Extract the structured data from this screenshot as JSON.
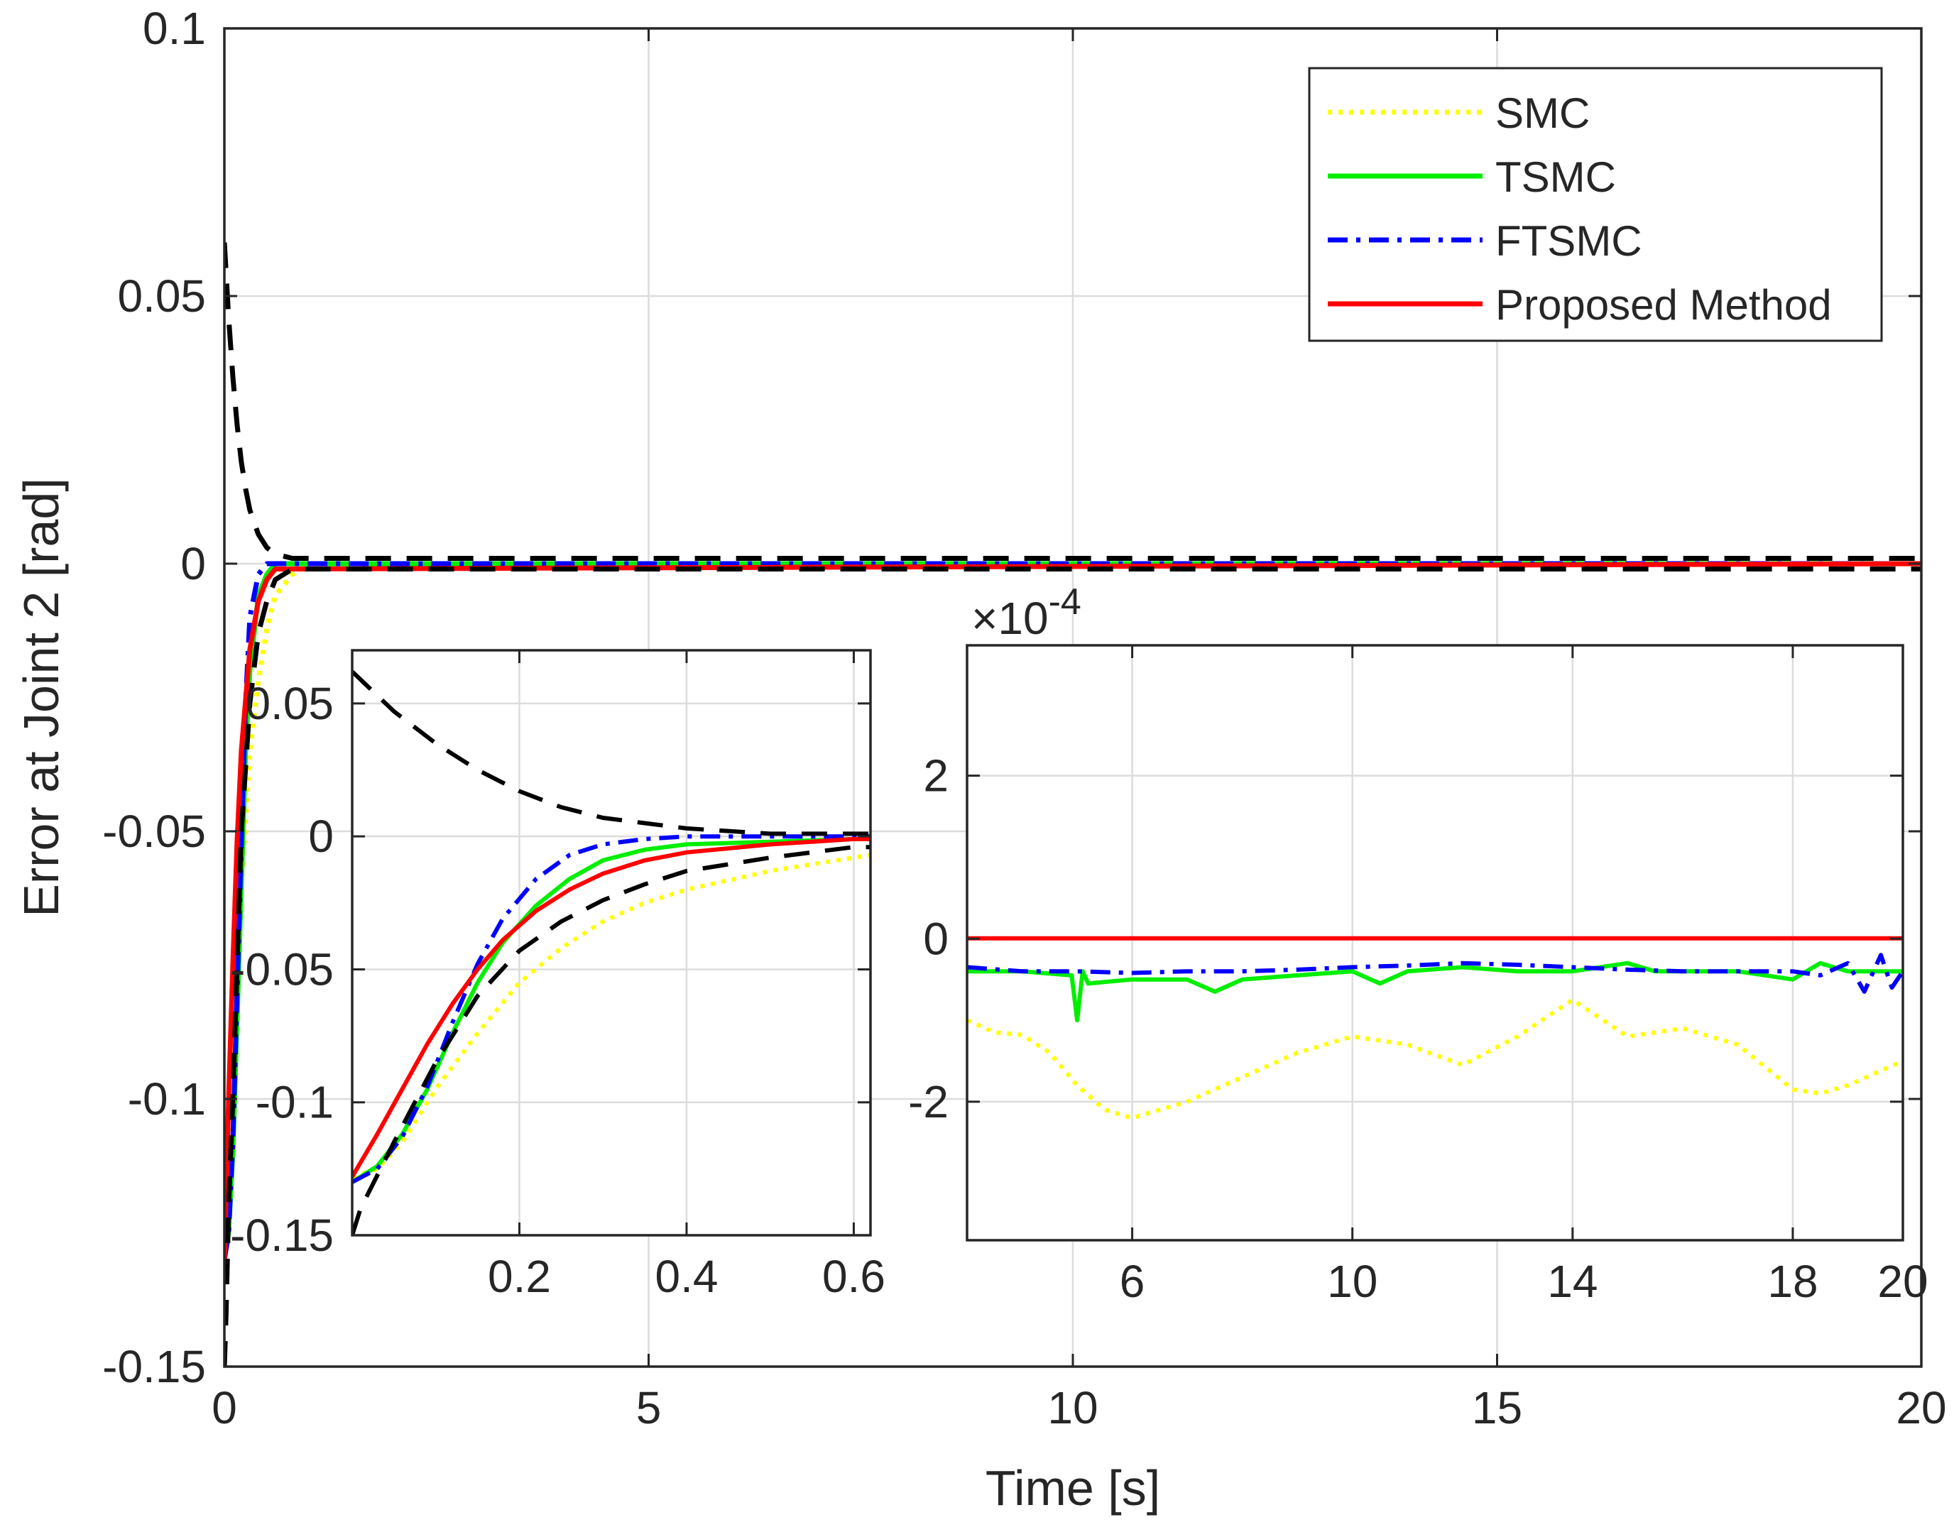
{
  "chart_data": [
    {
      "id": "main",
      "type": "line",
      "xlabel": "Time [s]",
      "ylabel": "Error at Joint 2 [rad]",
      "xlim": [
        0,
        20
      ],
      "ylim": [
        -0.15,
        0.1
      ],
      "grid": true,
      "legend_position": "top-right",
      "x_ticks": [
        0,
        5,
        10,
        15,
        20
      ],
      "x_tick_labels": [
        "0",
        "5",
        "10",
        "15",
        "20"
      ],
      "y_ticks": [
        -0.15,
        -0.1,
        -0.05,
        0,
        0.05,
        0.1
      ],
      "y_tick_labels": [
        "-0.15",
        "-0.1",
        "-0.05",
        "0",
        "0.05",
        "0.1"
      ],
      "legend": [
        "SMC",
        "TSMC",
        "FTSMC",
        "Proposed Method"
      ],
      "series": [
        {
          "name": "SMC",
          "color": "#ffff00",
          "style": "dotted",
          "x": [
            0,
            0.05,
            0.1,
            0.15,
            0.2,
            0.3,
            0.4,
            0.5,
            0.6,
            0.8,
            1.0,
            20
          ],
          "y": [
            -0.13,
            -0.12,
            -0.1,
            -0.08,
            -0.06,
            -0.035,
            -0.022,
            -0.012,
            -0.006,
            -0.002,
            0,
            0
          ]
        },
        {
          "name": "TSMC",
          "color": "#00ee00",
          "style": "solid",
          "x": [
            0,
            0.05,
            0.1,
            0.15,
            0.2,
            0.25,
            0.3,
            0.4,
            0.5,
            0.6,
            20
          ],
          "y": [
            -0.13,
            -0.125,
            -0.11,
            -0.085,
            -0.06,
            -0.035,
            -0.02,
            -0.006,
            -0.002,
            0,
            0
          ]
        },
        {
          "name": "FTSMC",
          "color": "#0000ff",
          "style": "dashdot",
          "x": [
            0,
            0.05,
            0.1,
            0.15,
            0.2,
            0.25,
            0.3,
            0.4,
            0.5,
            0.6,
            20
          ],
          "y": [
            -0.13,
            -0.125,
            -0.108,
            -0.08,
            -0.052,
            -0.026,
            -0.01,
            -0.002,
            0,
            0,
            0
          ]
        },
        {
          "name": "Proposed Method",
          "color": "#ff0000",
          "style": "solid",
          "x": [
            0,
            0.05,
            0.1,
            0.15,
            0.2,
            0.3,
            0.4,
            0.5,
            0.6,
            20
          ],
          "y": [
            -0.13,
            -0.1,
            -0.075,
            -0.052,
            -0.035,
            -0.016,
            -0.007,
            -0.003,
            -0.001,
            0
          ]
        },
        {
          "name": "bound-upper",
          "color": "#000000",
          "style": "dashed",
          "x": [
            0,
            0.05,
            0.1,
            0.15,
            0.2,
            0.25,
            0.3,
            0.4,
            0.5,
            0.6,
            0.8,
            1.0,
            20
          ],
          "y": [
            0.06,
            0.046,
            0.035,
            0.026,
            0.019,
            0.014,
            0.01,
            0.0055,
            0.003,
            0.0018,
            0.001,
            0.001,
            0.001
          ]
        },
        {
          "name": "bound-lower",
          "color": "#000000",
          "style": "dashed",
          "x": [
            0,
            0.02,
            0.05,
            0.1,
            0.15,
            0.2,
            0.3,
            0.4,
            0.5,
            0.6,
            0.8,
            1.0,
            20
          ],
          "y": [
            -0.15,
            -0.14,
            -0.12,
            -0.1,
            -0.075,
            -0.05,
            -0.026,
            -0.013,
            -0.007,
            -0.003,
            -0.001,
            -0.001,
            -0.001
          ]
        }
      ]
    },
    {
      "id": "inset-left",
      "type": "line",
      "xlim": [
        0,
        0.62
      ],
      "ylim": [
        -0.15,
        0.07
      ],
      "grid": true,
      "x_ticks": [
        0.2,
        0.4,
        0.6
      ],
      "x_tick_labels": [
        "0.2",
        "0.4",
        "0.6"
      ],
      "y_ticks": [
        -0.15,
        -0.1,
        -0.05,
        0,
        0.05
      ],
      "y_tick_labels": [
        "-0.15",
        "-0.1",
        "-0.05",
        "0",
        "0.05"
      ],
      "series": [
        {
          "name": "SMC",
          "color": "#ffff00",
          "style": "dotted",
          "x": [
            0,
            0.03,
            0.06,
            0.1,
            0.15,
            0.2,
            0.25,
            0.3,
            0.35,
            0.4,
            0.5,
            0.6,
            0.62
          ],
          "y": [
            -0.128,
            -0.125,
            -0.115,
            -0.095,
            -0.074,
            -0.055,
            -0.042,
            -0.032,
            -0.025,
            -0.02,
            -0.013,
            -0.008,
            -0.007
          ]
        },
        {
          "name": "TSMC",
          "color": "#00ee00",
          "style": "solid",
          "x": [
            0,
            0.03,
            0.06,
            0.09,
            0.12,
            0.15,
            0.18,
            0.22,
            0.26,
            0.3,
            0.35,
            0.4,
            0.5,
            0.6,
            0.62
          ],
          "y": [
            -0.13,
            -0.124,
            -0.112,
            -0.095,
            -0.074,
            -0.055,
            -0.04,
            -0.026,
            -0.016,
            -0.009,
            -0.005,
            -0.003,
            -0.002,
            -0.001,
            -0.001
          ]
        },
        {
          "name": "FTSMC",
          "color": "#0000ff",
          "style": "dashdot",
          "x": [
            0,
            0.03,
            0.06,
            0.09,
            0.12,
            0.15,
            0.18,
            0.22,
            0.26,
            0.3,
            0.35,
            0.4,
            0.5,
            0.62
          ],
          "y": [
            -0.13,
            -0.125,
            -0.113,
            -0.094,
            -0.07,
            -0.048,
            -0.031,
            -0.016,
            -0.007,
            -0.003,
            -0.001,
            0,
            0,
            0
          ]
        },
        {
          "name": "Proposed Method",
          "color": "#ff0000",
          "style": "solid",
          "x": [
            0,
            0.03,
            0.06,
            0.09,
            0.12,
            0.15,
            0.18,
            0.22,
            0.26,
            0.3,
            0.35,
            0.4,
            0.5,
            0.6,
            0.62
          ],
          "y": [
            -0.128,
            -0.112,
            -0.095,
            -0.078,
            -0.063,
            -0.05,
            -0.039,
            -0.028,
            -0.02,
            -0.014,
            -0.009,
            -0.006,
            -0.003,
            -0.001,
            -0.001
          ]
        },
        {
          "name": "bound-upper",
          "color": "#000000",
          "style": "dashed",
          "x": [
            0,
            0.05,
            0.1,
            0.15,
            0.2,
            0.25,
            0.3,
            0.35,
            0.4,
            0.5,
            0.62
          ],
          "y": [
            0.062,
            0.047,
            0.035,
            0.025,
            0.017,
            0.011,
            0.007,
            0.005,
            0.003,
            0.001,
            0.001
          ]
        },
        {
          "name": "bound-lower",
          "color": "#000000",
          "style": "dashed",
          "x": [
            0,
            0.01,
            0.05,
            0.1,
            0.15,
            0.2,
            0.25,
            0.3,
            0.35,
            0.4,
            0.5,
            0.6,
            0.62
          ],
          "y": [
            -0.15,
            -0.14,
            -0.115,
            -0.085,
            -0.06,
            -0.043,
            -0.032,
            -0.024,
            -0.018,
            -0.013,
            -0.008,
            -0.004,
            -0.004
          ]
        }
      ]
    },
    {
      "id": "inset-right",
      "type": "line",
      "xlim": [
        3,
        20
      ],
      "ylim": [
        -0.00037,
        0.00036
      ],
      "grid": true,
      "exponent_label": "×10",
      "exponent_power": "-4",
      "x_ticks": [
        6,
        10,
        14,
        18,
        20
      ],
      "x_tick_labels": [
        "6",
        "10",
        "14",
        "18",
        "20"
      ],
      "y_ticks": [
        -0.0002,
        0,
        0.0002
      ],
      "y_tick_labels": [
        "-2",
        "0",
        "2"
      ],
      "series": [
        {
          "name": "SMC",
          "color": "#ffff00",
          "style": "dotted",
          "x": [
            3,
            3.5,
            4,
            4.5,
            5,
            5.5,
            6,
            7,
            8,
            9,
            10,
            11,
            12,
            13,
            14,
            15,
            16,
            17,
            18,
            18.5,
            19,
            20
          ],
          "y": [
            -0.0001,
            -0.000115,
            -0.000118,
            -0.00014,
            -0.00018,
            -0.00021,
            -0.00022,
            -0.0002,
            -0.00017,
            -0.00014,
            -0.00012,
            -0.00013,
            -0.000155,
            -0.00012,
            -7.5e-05,
            -0.00012,
            -0.00011,
            -0.00013,
            -0.000185,
            -0.00019,
            -0.00018,
            -0.00015
          ]
        },
        {
          "name": "TSMC",
          "color": "#00ee00",
          "style": "solid",
          "x": [
            3,
            4,
            4.9,
            5.0,
            5.1,
            5.2,
            6,
            7,
            7.5,
            8,
            9,
            10,
            10.5,
            11,
            12,
            13,
            14,
            15,
            15.5,
            16,
            17,
            18,
            18.5,
            19,
            20
          ],
          "y": [
            -4e-05,
            -4e-05,
            -4.5e-05,
            -0.0001,
            -4e-05,
            -5.5e-05,
            -5e-05,
            -5e-05,
            -6.5e-05,
            -5e-05,
            -4.5e-05,
            -4e-05,
            -5.5e-05,
            -4e-05,
            -3.5e-05,
            -4e-05,
            -4e-05,
            -3e-05,
            -4e-05,
            -4e-05,
            -4e-05,
            -5e-05,
            -3e-05,
            -4e-05,
            -4e-05
          ]
        },
        {
          "name": "FTSMC",
          "color": "#0000ff",
          "style": "dashdot",
          "x": [
            3,
            4,
            5,
            6,
            7,
            8,
            9,
            10,
            11,
            12,
            13,
            14,
            15,
            16,
            17,
            18,
            18.5,
            19,
            19.3,
            19.6,
            19.8,
            20
          ],
          "y": [
            -3.5e-05,
            -4e-05,
            -4e-05,
            -4.2e-05,
            -4e-05,
            -4e-05,
            -3.8e-05,
            -3.5e-05,
            -3.3e-05,
            -3e-05,
            -3.2e-05,
            -3.5e-05,
            -3.8e-05,
            -4e-05,
            -4e-05,
            -4e-05,
            -4.5e-05,
            -3e-05,
            -6.5e-05,
            -2e-05,
            -6e-05,
            -4e-05
          ]
        },
        {
          "name": "Proposed Method",
          "color": "#ff0000",
          "style": "solid",
          "x": [
            3,
            20
          ],
          "y": [
            5e-07,
            5e-07
          ]
        }
      ]
    }
  ]
}
